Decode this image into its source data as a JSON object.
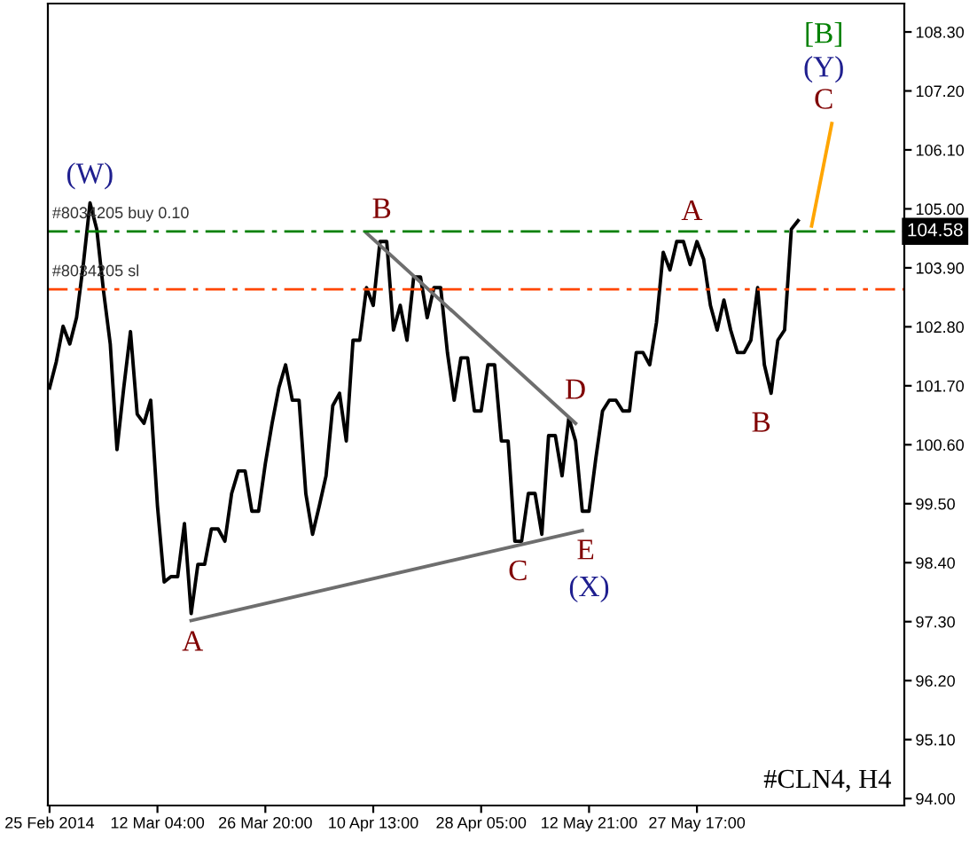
{
  "chart_data": {
    "type": "line",
    "categories": [
      "25 Feb 2014",
      null,
      null,
      null,
      null,
      null,
      null,
      null,
      null,
      null,
      null,
      null,
      null,
      null,
      null,
      null,
      "12 Mar 04:00",
      null,
      null,
      null,
      null,
      null,
      null,
      null,
      null,
      null,
      null,
      null,
      null,
      null,
      null,
      null,
      "26 Mar 20:00",
      null,
      null,
      null,
      null,
      null,
      null,
      null,
      null,
      null,
      null,
      null,
      null,
      null,
      null,
      null,
      "10 Apr 13:00",
      null,
      null,
      null,
      null,
      null,
      null,
      null,
      null,
      null,
      null,
      null,
      null,
      null,
      null,
      null,
      "28 Apr 05:00",
      null,
      null,
      null,
      null,
      null,
      null,
      null,
      null,
      null,
      null,
      null,
      null,
      null,
      null,
      null,
      "12 May 21:00",
      null,
      null,
      null,
      null,
      null,
      null,
      null,
      null,
      null,
      null,
      null,
      null,
      null,
      null,
      null,
      "27 May 17:00",
      null,
      null,
      null,
      null,
      null,
      null,
      null,
      null,
      null,
      null,
      null,
      null,
      null,
      null,
      null,
      null,
      null,
      null,
      null,
      null,
      null,
      null,
      null,
      null,
      null,
      null,
      null,
      null,
      null,
      null
    ],
    "series": [
      {
        "color": "#000000",
        "values": [
          101.66,
          102.15,
          102.81,
          102.48,
          102.97,
          103.96,
          105.11,
          104.62,
          103.47,
          102.48,
          100.51,
          101.66,
          102.71,
          101.17,
          101.0,
          101.43,
          99.46,
          98.04,
          98.14,
          98.14,
          99.13,
          97.45,
          98.37,
          98.37,
          99.03,
          99.03,
          98.8,
          99.69,
          100.11,
          100.11,
          99.36,
          99.36,
          100.25,
          101.0,
          101.66,
          102.09,
          101.43,
          101.43,
          99.69,
          98.93,
          99.46,
          100.02,
          101.33,
          101.56,
          100.67,
          102.55,
          102.55,
          103.53,
          103.2,
          104.39,
          104.39,
          102.74,
          103.2,
          102.55,
          103.73,
          103.73,
          102.97,
          103.53,
          103.53,
          102.32,
          101.43,
          102.22,
          102.22,
          101.23,
          101.23,
          102.09,
          102.09,
          100.67,
          100.67,
          98.8,
          98.8,
          99.69,
          99.69,
          98.93,
          100.77,
          100.77,
          100.02,
          101.1,
          100.67,
          99.36,
          99.36,
          100.34,
          101.23,
          101.43,
          101.43,
          101.23,
          101.23,
          102.32,
          102.32,
          102.09,
          102.88,
          104.19,
          103.86,
          104.39,
          104.39,
          103.96,
          104.39,
          104.06,
          103.2,
          102.74,
          103.3,
          102.74,
          102.32,
          102.32,
          102.55,
          103.53,
          102.09,
          101.56,
          102.55,
          102.74,
          104.62,
          104.78,
          null,
          null,
          null,
          null,
          null,
          null,
          null,
          null,
          null,
          null,
          null,
          null,
          null,
          null,
          null
        ]
      },
      {
        "color": "#6e6e6e",
        "values": [
          null,
          null,
          null,
          null,
          null,
          null,
          null,
          null,
          null,
          null,
          null,
          null,
          null,
          null,
          null,
          null,
          null,
          null,
          null,
          null,
          null,
          null,
          null,
          null,
          null,
          null,
          null,
          null,
          null,
          null,
          null,
          null,
          null,
          null,
          null,
          null,
          null,
          null,
          null,
          null,
          null,
          null,
          null,
          null,
          null,
          null,
          null,
          104.55,
          null,
          null,
          null,
          null,
          null,
          null,
          null,
          null,
          null,
          null,
          null,
          null,
          null,
          null,
          null,
          null,
          null,
          null,
          null,
          null,
          null,
          null,
          null,
          null,
          null,
          null,
          null,
          null,
          null,
          null,
          101.0,
          null,
          null,
          null,
          null,
          null,
          null,
          null,
          null,
          null,
          null,
          null,
          null,
          null,
          null,
          null,
          null,
          null,
          null,
          null,
          null,
          null,
          null,
          null,
          null,
          null,
          null,
          null,
          null,
          null,
          null,
          null,
          null,
          null,
          null,
          null,
          null,
          null,
          null,
          null,
          null,
          null,
          null,
          null,
          null,
          null,
          null,
          null,
          null
        ]
      },
      {
        "color": "#6e6e6e",
        "values": [
          null,
          null,
          null,
          null,
          null,
          null,
          null,
          null,
          null,
          null,
          null,
          null,
          null,
          null,
          null,
          null,
          null,
          null,
          null,
          null,
          null,
          97.32,
          null,
          null,
          null,
          null,
          null,
          null,
          null,
          null,
          null,
          null,
          null,
          null,
          null,
          null,
          null,
          null,
          null,
          null,
          null,
          null,
          null,
          null,
          null,
          null,
          null,
          null,
          null,
          null,
          null,
          null,
          null,
          null,
          null,
          null,
          null,
          null,
          null,
          null,
          null,
          null,
          null,
          null,
          null,
          null,
          null,
          null,
          null,
          null,
          null,
          null,
          null,
          null,
          null,
          null,
          null,
          null,
          null,
          99.0,
          null,
          null,
          null,
          null,
          null,
          null,
          null,
          null,
          null,
          null,
          null,
          null,
          null,
          null,
          null,
          null,
          null,
          null,
          null,
          null,
          null,
          null,
          null,
          null,
          null,
          null,
          null,
          null,
          null,
          null,
          null,
          null,
          null,
          null,
          null,
          null,
          null,
          null,
          null,
          null,
          null,
          null,
          null,
          null,
          null,
          null,
          null
        ]
      },
      {
        "color": "#ffa500",
        "values": [
          null,
          null,
          null,
          null,
          null,
          null,
          null,
          null,
          null,
          null,
          null,
          null,
          null,
          null,
          null,
          null,
          null,
          null,
          null,
          null,
          null,
          null,
          null,
          null,
          null,
          null,
          null,
          null,
          null,
          null,
          null,
          null,
          null,
          null,
          null,
          null,
          null,
          null,
          null,
          null,
          null,
          null,
          null,
          null,
          null,
          null,
          null,
          null,
          null,
          null,
          null,
          null,
          null,
          null,
          null,
          null,
          null,
          null,
          null,
          null,
          null,
          null,
          null,
          null,
          null,
          null,
          null,
          null,
          null,
          null,
          null,
          null,
          null,
          null,
          null,
          null,
          null,
          null,
          null,
          null,
          null,
          null,
          null,
          null,
          null,
          null,
          null,
          null,
          null,
          null,
          null,
          null,
          null,
          null,
          null,
          null,
          null,
          null,
          null,
          null,
          null,
          null,
          null,
          null,
          null,
          null,
          null,
          null,
          null,
          null,
          null,
          null,
          null,
          104.68,
          null,
          null,
          106.59,
          null,
          null,
          null,
          null,
          null,
          null,
          null,
          null,
          null,
          null
        ]
      }
    ],
    "ylim": [
      93.87,
      108.83
    ],
    "yticks": [
      {
        "value": 108.3,
        "label": "108.30"
      },
      {
        "value": 107.2,
        "label": "107.20"
      },
      {
        "value": 106.1,
        "label": "106.10"
      },
      {
        "value": 105.0,
        "label": "105.00"
      },
      {
        "value": 103.9,
        "label": "103.90"
      },
      {
        "value": 102.8,
        "label": "102.80"
      },
      {
        "value": 101.7,
        "label": "101.70"
      },
      {
        "value": 100.6,
        "label": "100.60"
      },
      {
        "value": 99.5,
        "label": "99.50"
      },
      {
        "value": 98.4,
        "label": "98.40"
      },
      {
        "value": 97.3,
        "label": "97.30"
      },
      {
        "value": 96.2,
        "label": "96.20"
      },
      {
        "value": 95.1,
        "label": "95.10"
      },
      {
        "value": 94.0,
        "label": "94.00"
      }
    ],
    "ref_lines": [
      {
        "axis": "y",
        "value": 104.58,
        "label": "#8034205 buy 0.10",
        "color": "#008000",
        "line_style": "dashed"
      },
      {
        "axis": "y",
        "value": 103.5,
        "label": "#8034205 sl",
        "color": "#ff4500",
        "line_style": "dashed"
      }
    ],
    "annotations": [
      "(W)",
      {
        "text": "B",
        "y": 104.55
      },
      "A",
      "C",
      "D",
      "E",
      "(X)",
      "A",
      "B",
      {
        "text": "C",
        "y": 106.59
      },
      "(Y)",
      "[B]",
      {
        "text": "104.58",
        "y": 104.58
      },
      "#CLN4, H4"
    ],
    "grid": false,
    "marker": "none",
    "line_style": "solid"
  }
}
